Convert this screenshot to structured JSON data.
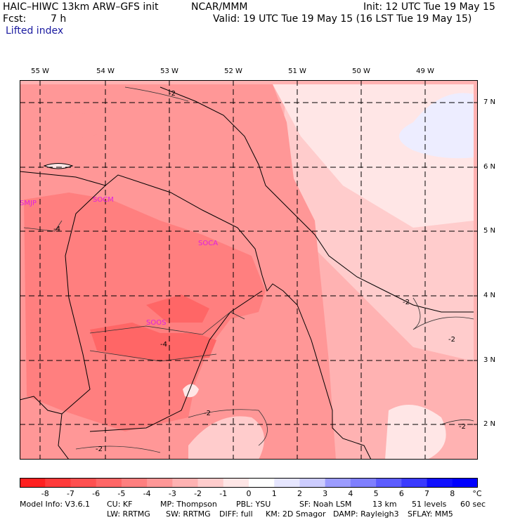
{
  "header": {
    "model_title": "HAIC–HIWC 13km ARW–GFS init",
    "org": "NCAR/MMM",
    "init": "Init: 12 UTC Tue 19 May 15",
    "fcst_label": "Fcst:",
    "fcst_value": "7 h",
    "valid": "Valid: 19 UTC Tue 19 May 15 (16 LST Tue 19 May 15)",
    "field": "Lifted index"
  },
  "map": {
    "lon_labels": [
      "55 W",
      "54 W",
      "53 W",
      "52 W",
      "51 W",
      "50 W",
      "49 W"
    ],
    "lat_labels": [
      "7 N",
      "6 N",
      "5 N",
      "4 N",
      "3 N",
      "2 N"
    ],
    "stations": [
      "SMJP",
      "SOCM",
      "SOCA",
      "SOOS"
    ],
    "contour_labels": [
      "-2",
      "-4",
      "-4",
      "-2",
      "-2",
      "-2",
      "-2",
      "-2"
    ]
  },
  "colorbar": {
    "labels": [
      "-8",
      "-7",
      "-6",
      "-5",
      "-4",
      "-3",
      "-2",
      "-1",
      "0",
      "1",
      "2",
      "3",
      "4",
      "5",
      "6",
      "7",
      "8"
    ],
    "unit": "°C",
    "colors": [
      "#ff2020",
      "#ff3a3a",
      "#ff5050",
      "#ff6666",
      "#ff7f7f",
      "#ff9797",
      "#ffb2b2",
      "#ffcccc",
      "#ffe6e6",
      "#ffffff",
      "#e6e6ff",
      "#ccccff",
      "#9c9cff",
      "#7f7fff",
      "#5c5cff",
      "#3a3aff",
      "#1010ff",
      "#0000ff"
    ]
  },
  "footer": {
    "line1": [
      "Model Info: V3.6.1",
      "CU: KF",
      "MP: Thompson",
      "PBL: YSU",
      "SF: Noah LSM",
      "13 km",
      "51 levels",
      "60 sec"
    ],
    "line2": [
      "LW: RRTMG",
      "SW: RRTMG",
      "DIFF: full",
      "KM: 2D Smagor",
      "DAMP: Rayleigh3",
      "SFLAY: MM5"
    ]
  }
}
